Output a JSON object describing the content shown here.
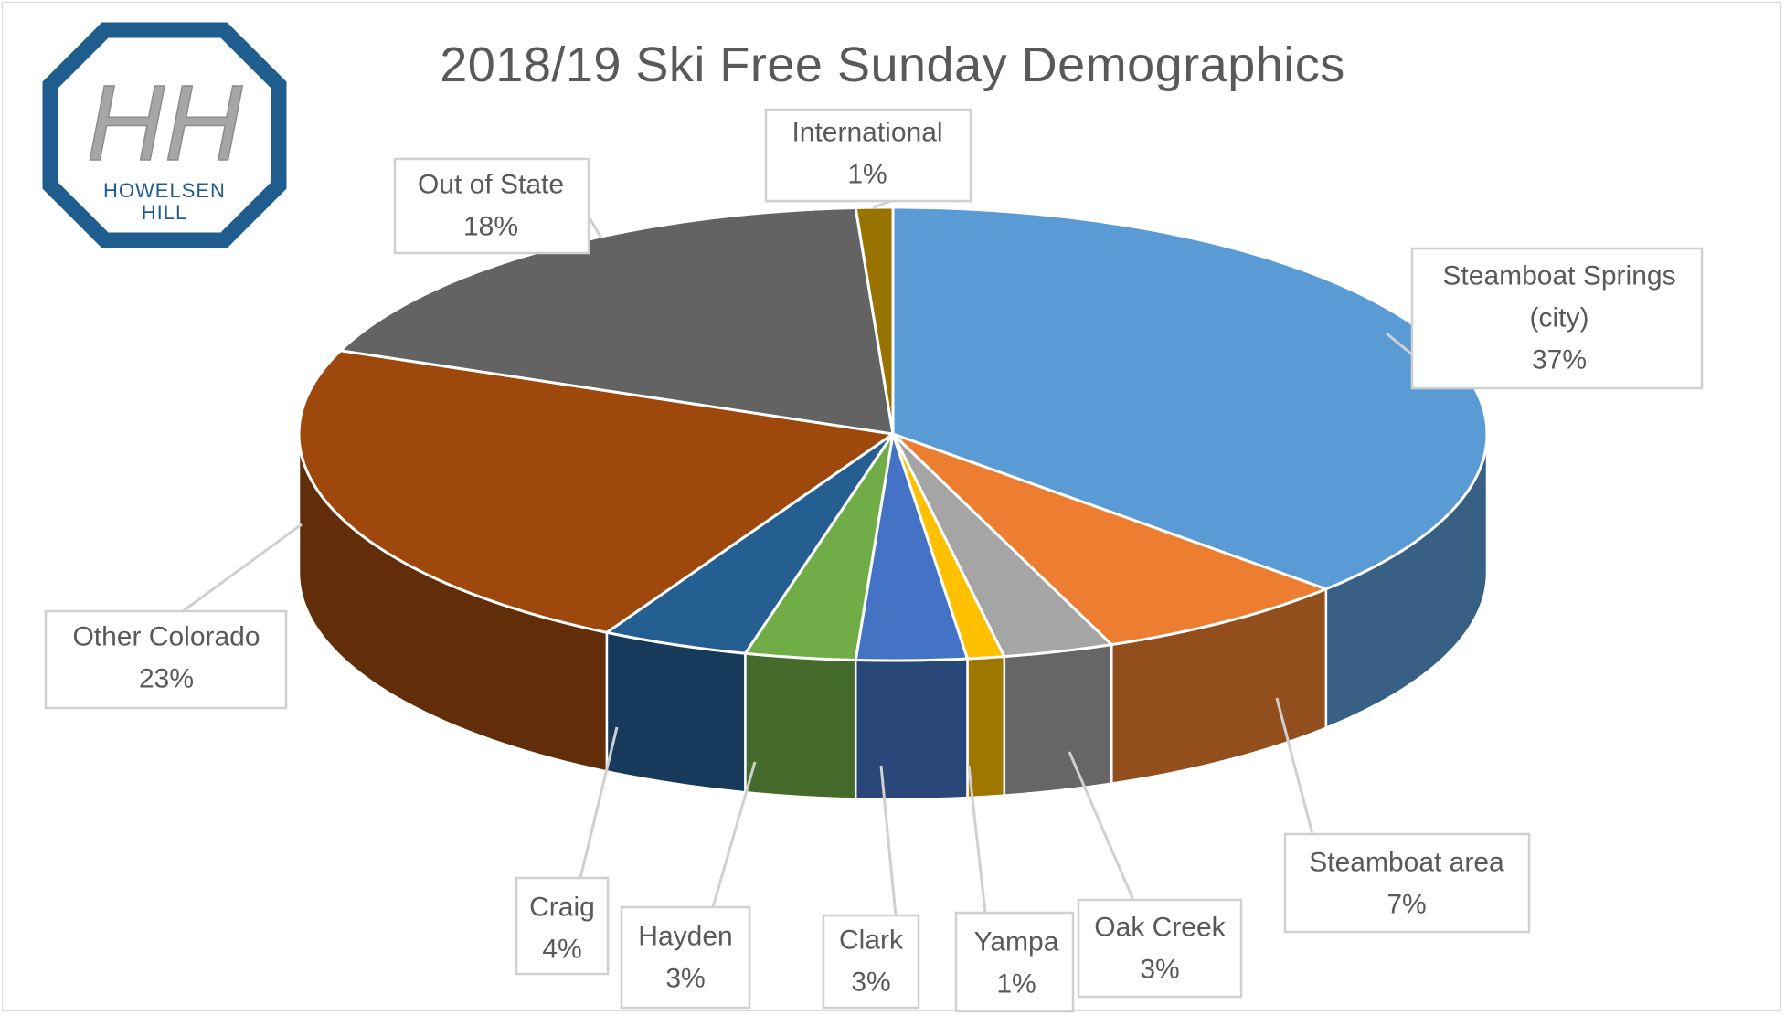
{
  "logo": {
    "monogram": "HH",
    "line1": "HOWELSEN",
    "line2": "HILL",
    "border_color": "#1f5d8f",
    "text_color": "#1f5d8f",
    "monogram_color": "#a6a6a6"
  },
  "chart_data": {
    "type": "pie",
    "title": "2018/19 Ski Free Sunday Demographics",
    "style": "3d",
    "labels_show": "category and percent",
    "slices": [
      {
        "label": "Steamboat Springs (city)",
        "label_lines": [
          "Steamboat Springs",
          "(city)"
        ],
        "percent_label": "37%",
        "value": 37,
        "color": "#5b9bd5"
      },
      {
        "label": "Steamboat area",
        "label_lines": [
          "Steamboat area"
        ],
        "percent_label": "7%",
        "value": 7,
        "color": "#ed7d31"
      },
      {
        "label": "Oak Creek",
        "label_lines": [
          "Oak Creek"
        ],
        "percent_label": "3%",
        "value": 3,
        "color": "#a5a5a5"
      },
      {
        "label": "Yampa",
        "label_lines": [
          "Yampa"
        ],
        "percent_label": "1%",
        "value": 1,
        "color": "#ffc000"
      },
      {
        "label": "Clark",
        "label_lines": [
          "Clark"
        ],
        "percent_label": "3%",
        "value": 3,
        "color": "#4472c4"
      },
      {
        "label": "Hayden",
        "label_lines": [
          "Hayden"
        ],
        "percent_label": "3%",
        "value": 3,
        "color": "#70ad47"
      },
      {
        "label": "Craig",
        "label_lines": [
          "Craig"
        ],
        "percent_label": "4%",
        "value": 4,
        "color": "#255e91"
      },
      {
        "label": "Other Colorado",
        "label_lines": [
          "Other Colorado"
        ],
        "percent_label": "23%",
        "value": 23,
        "color": "#9e480e"
      },
      {
        "label": "Out of State",
        "label_lines": [
          "Out of State"
        ],
        "percent_label": "18%",
        "value": 18,
        "color": "#636363"
      },
      {
        "label": "International",
        "label_lines": [
          "International"
        ],
        "percent_label": "1%",
        "value": 1,
        "color": "#997300"
      }
    ]
  }
}
